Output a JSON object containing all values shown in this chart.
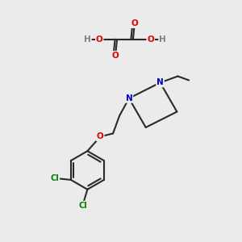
{
  "background_color": "#ebebeb",
  "line_color": "#2a2a2a",
  "bond_width": 1.5,
  "atom_colors": {
    "O": "#e00000",
    "N": "#0000cc",
    "Cl": "#008000",
    "H": "#808080"
  },
  "figsize": [
    3.0,
    3.0
  ],
  "dpi": 100
}
